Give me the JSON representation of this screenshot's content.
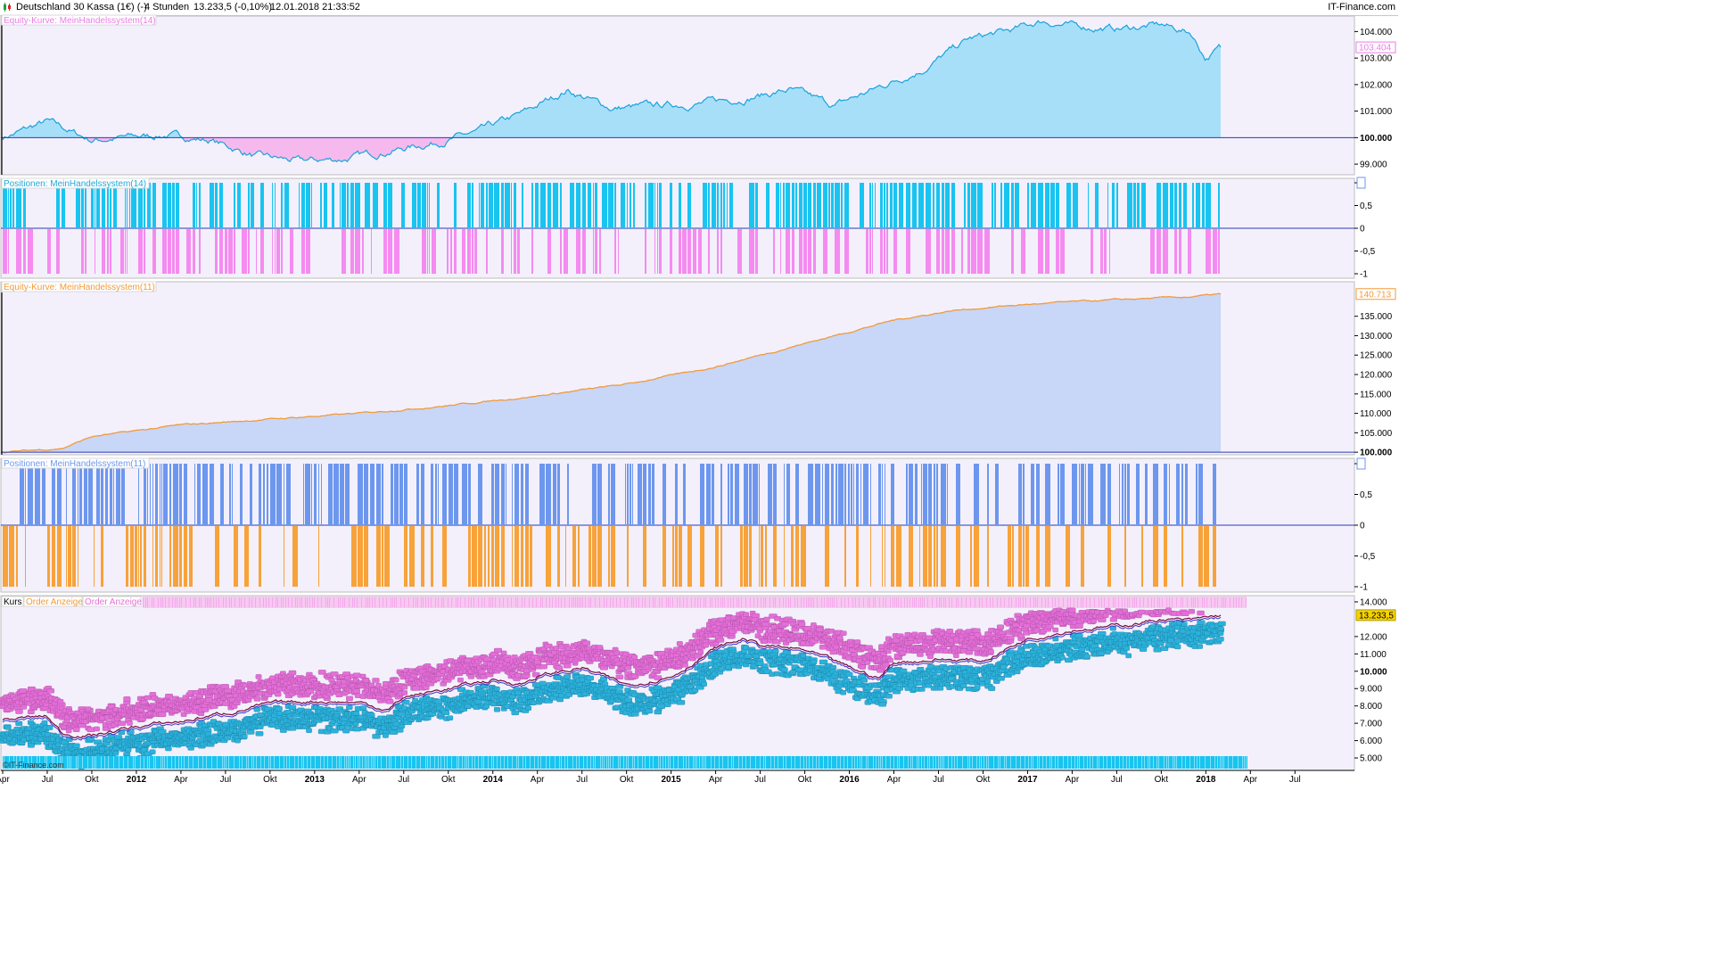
{
  "header": {
    "instrument": "Deutschland 30 Kassa (1€) (-)",
    "timeframe": "4 Stunden",
    "quote": "13.233,5 (-0,10%)",
    "datetime": "12.01.2018 21:33:52",
    "site": "IT-Finance.com"
  },
  "watermark": "©IT-Finance.com",
  "colors": {
    "background": "#f3f0fc",
    "eq14_fill_pos": "#a8dff8",
    "eq14_fill_neg": "#f6b9ee",
    "eq14_line": "#1aa3d9",
    "eq11_fill": "#c8d6f7",
    "eq11_line": "#f29a38",
    "pos14_long": "#18c4f0",
    "pos14_short": "#f58bf0",
    "pos11_long": "#6d97ee",
    "pos11_short": "#f8a23a",
    "baseline": "#2a3ab5",
    "price_long_marker": "#2bb2dc",
    "price_short_marker": "#e46ed8"
  },
  "chart_data": [
    {
      "type": "area",
      "panel": "equity-14",
      "title": "Equity-Kurve: MeinHandelssystem(14)",
      "baseline": 100000,
      "ylim": [
        98600,
        104450
      ],
      "ytick_labels": [
        "104.000",
        "103.000",
        "102.000",
        "101.000",
        "100.000",
        "99.000"
      ],
      "ytick_values": [
        104000,
        103000,
        102000,
        101000,
        100000,
        99000
      ],
      "last_value_label": "103.404",
      "x_months": [
        0,
        3,
        6,
        8,
        11,
        14,
        17,
        20,
        23,
        26,
        29,
        32,
        35,
        38,
        41,
        44,
        47,
        50,
        53,
        56,
        59,
        62,
        65,
        68,
        70,
        72,
        75,
        78,
        80,
        81,
        82
      ],
      "y": [
        100000,
        100600,
        99900,
        100000,
        100100,
        99900,
        99300,
        99100,
        99200,
        99500,
        99800,
        100200,
        100900,
        101800,
        101100,
        101200,
        101300,
        101500,
        101800,
        101200,
        101900,
        102600,
        103700,
        104050,
        104400,
        104200,
        104100,
        104250,
        103950,
        103000,
        103404
      ]
    },
    {
      "type": "bar",
      "panel": "positions-14",
      "title": "Positionen: MeinHandelssystem(14)",
      "ytick_labels": [
        "1",
        "0,5",
        "0",
        "-0,5",
        "-1"
      ],
      "ytick_values": [
        1,
        0.5,
        0,
        -0.5,
        -1
      ],
      "long_value": 1,
      "short_value": -1,
      "x_months": [
        0,
        82
      ],
      "long_density": 0.72,
      "short_density": 0.55
    },
    {
      "type": "area",
      "panel": "equity-11",
      "title": "Equity-Kurve: MeinHandelssystem(11)",
      "baseline": 100000,
      "ylim": [
        99800,
        142500
      ],
      "ytick_labels": [
        "135.000",
        "130.000",
        "125.000",
        "120.000",
        "115.000",
        "110.000",
        "105.000",
        "100.000"
      ],
      "ytick_values": [
        135000,
        130000,
        125000,
        120000,
        115000,
        110000,
        105000,
        100000
      ],
      "last_value_label": "140.713",
      "x_months": [
        0,
        4,
        6,
        12,
        18,
        24,
        30,
        36,
        42,
        48,
        52,
        56,
        60,
        64,
        68,
        72,
        76,
        80,
        82
      ],
      "y": [
        100000,
        101000,
        104000,
        107000,
        108500,
        110000,
        112000,
        114500,
        117500,
        122000,
        126000,
        130000,
        134000,
        136500,
        137800,
        138700,
        139400,
        140000,
        140713
      ]
    },
    {
      "type": "bar",
      "panel": "positions-11",
      "title": "Positionen: MeinHandelssystem(11)",
      "ytick_labels": [
        "1",
        "0,5",
        "0",
        "-0,5",
        "-1"
      ],
      "ytick_values": [
        1,
        0.5,
        0,
        -0.5,
        -1
      ],
      "long_value": 1,
      "short_value": -1,
      "x_months": [
        0,
        82
      ],
      "long_density": 0.62,
      "short_density": 0.48
    },
    {
      "type": "scatter",
      "panel": "price",
      "title": "Kurs",
      "legend": [
        "Order Anzeige",
        "Order Anzeige"
      ],
      "ylim": [
        4900,
        14050
      ],
      "ytick_labels": [
        "14.000",
        "12.000",
        "11.000",
        "10.000",
        "9.000",
        "8.000",
        "7.000",
        "6.000",
        "5.000"
      ],
      "ytick_values": [
        14000,
        12000,
        11000,
        10000,
        9000,
        8000,
        7000,
        6000,
        5000
      ],
      "last_value_label": "13.233,5",
      "x_months": [
        0,
        3,
        4,
        6,
        9,
        12,
        15,
        18,
        21,
        24,
        26,
        27,
        30,
        33,
        35,
        36,
        39,
        42,
        45,
        48,
        50,
        51,
        54,
        57,
        59,
        60,
        63,
        66,
        69,
        72,
        75,
        78,
        80,
        82
      ],
      "close": [
        7200,
        7400,
        6400,
        6300,
        6800,
        7100,
        7600,
        8100,
        8300,
        8200,
        7800,
        8500,
        9000,
        9500,
        9300,
        9700,
        10200,
        9200,
        9700,
        11300,
        11900,
        11500,
        11200,
        10200,
        9600,
        10500,
        10700,
        10600,
        11900,
        12400,
        12600,
        13000,
        12900,
        13233
      ]
    }
  ],
  "x_axis": {
    "first_label": "Apr",
    "labels": [
      "Apr",
      "Jul",
      "Okt",
      "2012",
      "Apr",
      "Jul",
      "Okt",
      "2013",
      "Apr",
      "Jul",
      "Okt",
      "2014",
      "Apr",
      "Jul",
      "Okt",
      "2015",
      "Apr",
      "Jul",
      "Okt",
      "2016",
      "Apr",
      "Jul",
      "Okt",
      "2017",
      "Apr",
      "Jul",
      "Okt",
      "2018",
      "Apr",
      "Jul"
    ]
  }
}
